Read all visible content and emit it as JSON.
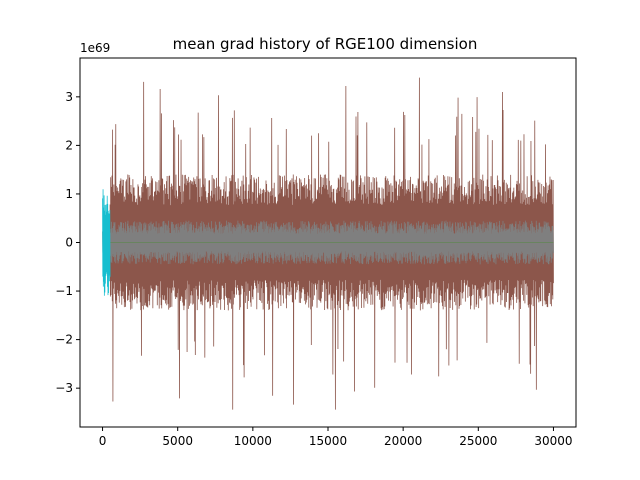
{
  "chart_data": {
    "type": "line",
    "title": "mean grad history of RGE100 dimension",
    "xlabel": "",
    "ylabel": "",
    "y_offset_label": "1e69",
    "xlim": [
      -1500,
      31500
    ],
    "ylim": [
      -3.8,
      3.8
    ],
    "x_ticks": [
      0,
      5000,
      10000,
      15000,
      20000,
      25000,
      30000
    ],
    "x_tick_labels": [
      "0",
      "5000",
      "10000",
      "15000",
      "20000",
      "25000",
      "30000"
    ],
    "y_ticks": [
      -3,
      -2,
      -1,
      0,
      1,
      2,
      3
    ],
    "y_tick_labels": [
      "−3",
      "−2",
      "−1",
      "0",
      "1",
      "2",
      "3"
    ],
    "grid": false,
    "series_style": {
      "dominant_color": "#8c564b",
      "core_color": "#7f7f7f",
      "accent_colors": [
        "#17becf",
        "#d62728",
        "#bcbd22",
        "#ff7f0e",
        "#2ca02c",
        "#1f77b4"
      ]
    },
    "series_summary": {
      "x_range": [
        0,
        30000
      ],
      "brown_band_typical_range": [
        -1.4,
        1.4
      ],
      "brown_spike_max": 3.45,
      "brown_spike_min": -3.45,
      "gray_band_typical_range": [
        -0.45,
        0.45
      ],
      "brown_starts_at_x": 500
    }
  }
}
